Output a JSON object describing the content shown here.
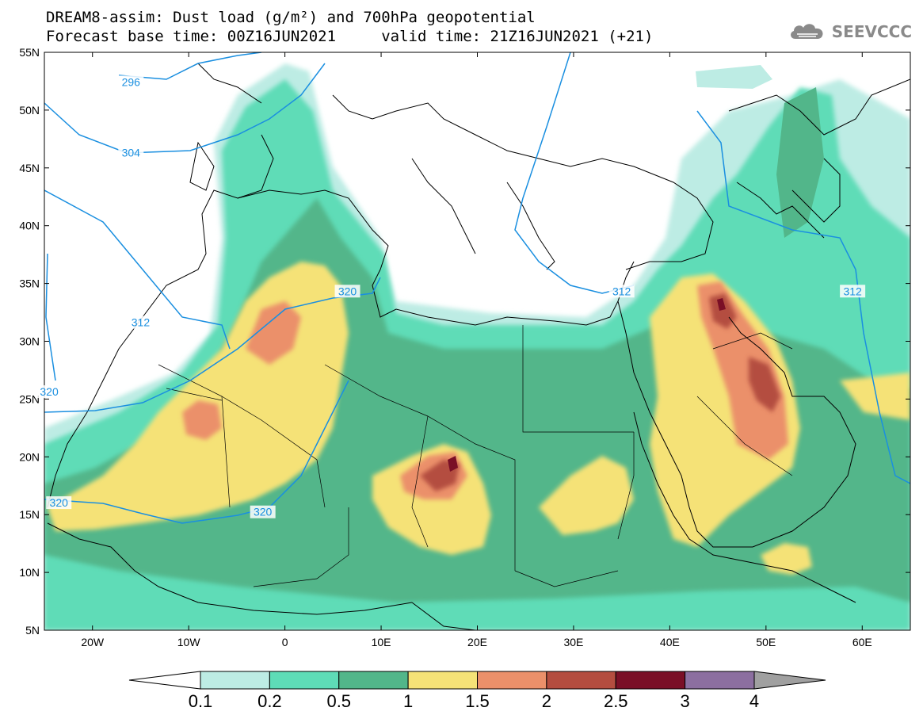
{
  "header": {
    "title_line1": "DREAM8-assim: Dust load (g/m²) and 700hPa geopotential",
    "title_line2": "Forecast base time: 00Z16JUN2021     valid time: 21Z16JUN2021 (+21)",
    "logo_text": "SEEVCCC"
  },
  "map": {
    "lat_labels": [
      "55N",
      "50N",
      "45N",
      "40N",
      "35N",
      "30N",
      "25N",
      "20N",
      "15N",
      "10N",
      "5N"
    ],
    "lon_labels": [
      "20W",
      "10W",
      "0",
      "10E",
      "20E",
      "30E",
      "40E",
      "50E",
      "60E"
    ],
    "lat_range": [
      5,
      55
    ],
    "lon_range": [
      -25,
      65
    ],
    "contour_labels": [
      {
        "text": "296",
        "lon": -16,
        "lat": 52.3
      },
      {
        "text": "304",
        "lon": -16,
        "lat": 46.2
      },
      {
        "text": "312",
        "lon": -15,
        "lat": 31.5
      },
      {
        "text": "320",
        "lon": -24.5,
        "lat": 25.5
      },
      {
        "text": "320",
        "lon": 6.5,
        "lat": 34.2
      },
      {
        "text": "320",
        "lon": -23.5,
        "lat": 15.9
      },
      {
        "text": "320",
        "lon": -2.3,
        "lat": 15.1
      },
      {
        "text": "312",
        "lon": 35,
        "lat": 34.2
      },
      {
        "text": "312",
        "lon": 59,
        "lat": 34.2
      }
    ],
    "contour_color": "#1a8fe0"
  },
  "colorbar": {
    "labels": [
      "0.1",
      "0.2",
      "0.5",
      "1",
      "1.5",
      "2",
      "2.5",
      "3",
      "4"
    ],
    "colors": [
      "#ffffff",
      "#bdece4",
      "#5edcb7",
      "#52b68a",
      "#f5e277",
      "#eb906a",
      "#b44d3f",
      "#7a0f26",
      "#8c6fa0",
      "#a0a0a0"
    ]
  }
}
